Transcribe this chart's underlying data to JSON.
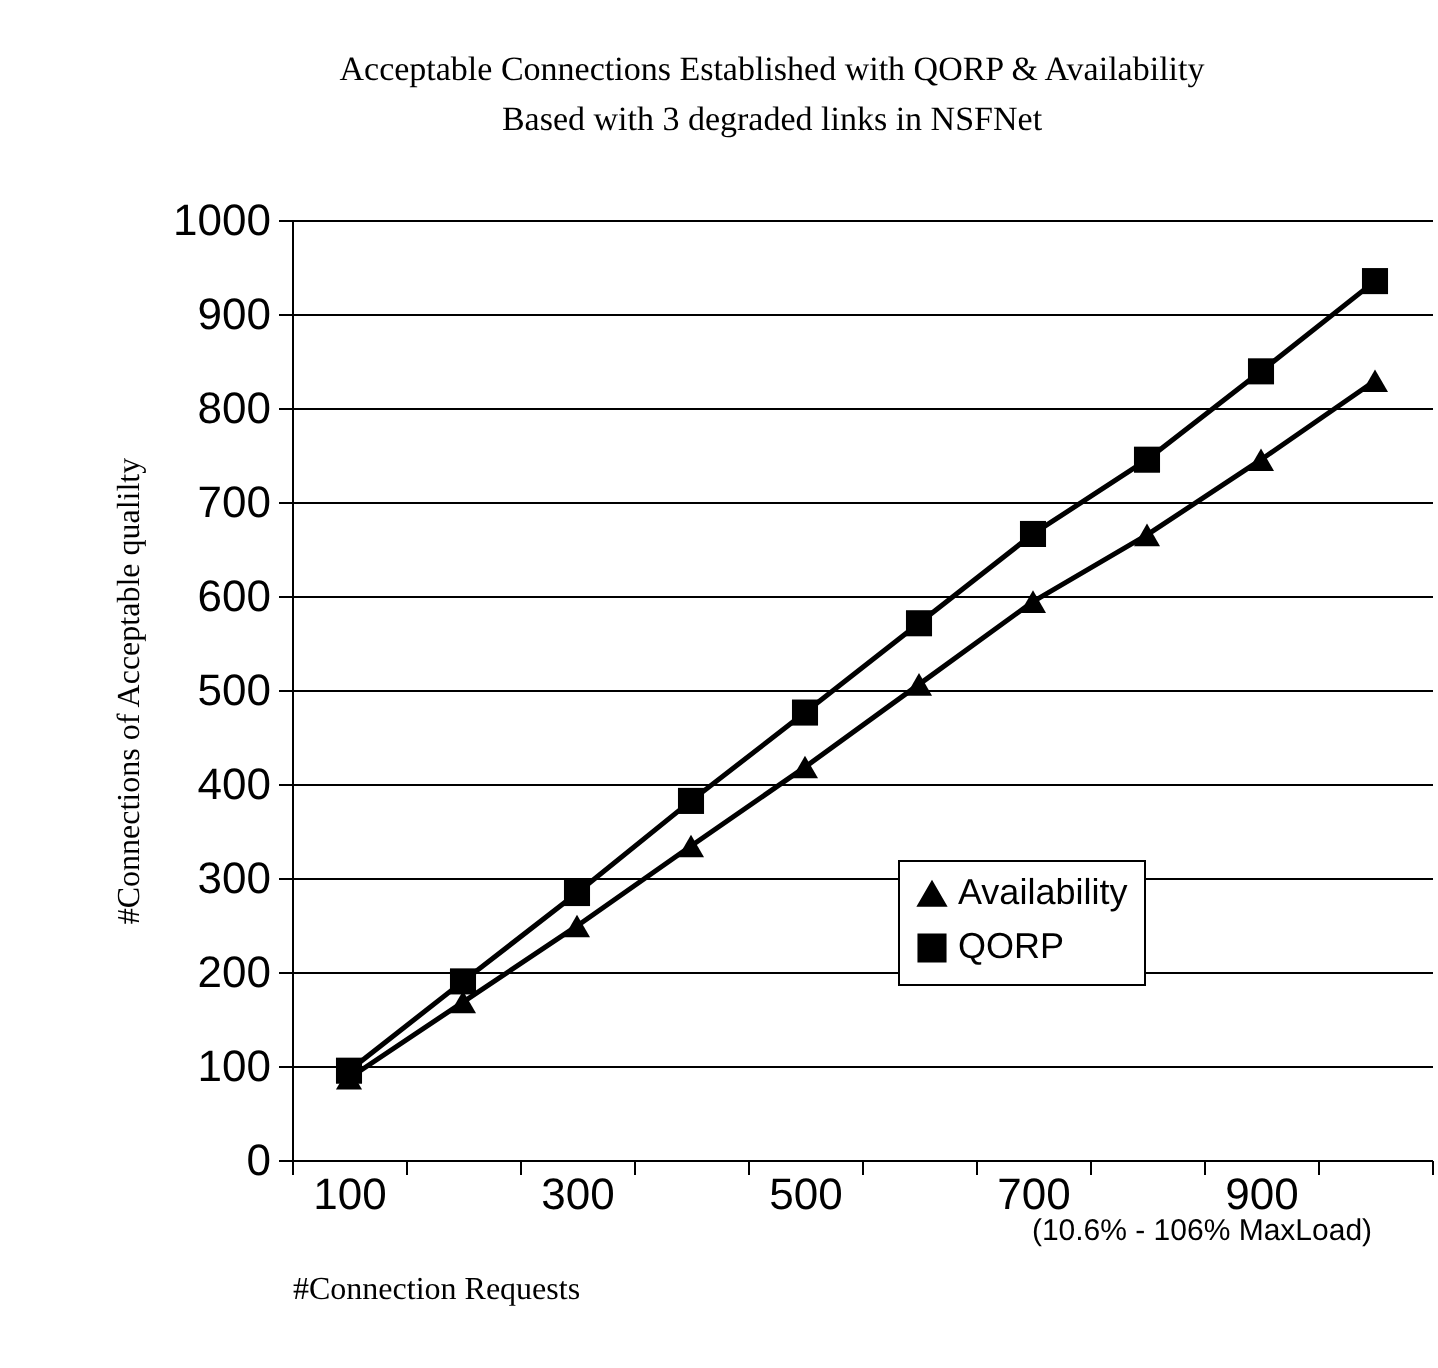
{
  "chart_data": {
    "type": "line",
    "title": "Acceptable Connections Established with QORP & Availability",
    "subtitle": "Based with 3 degraded links in NSFNet",
    "xlabel": "#Connection Requests",
    "ylabel": "#Connections of Acceptable qualilty",
    "categories": [
      "100",
      null,
      "300",
      null,
      "500",
      null,
      "700",
      null,
      "900",
      null
    ],
    "series": [
      {
        "name": "Availability",
        "color": "#000000",
        "marker": "triangle",
        "values": [
          87,
          168,
          249,
          334,
          418,
          506,
          594,
          665,
          745,
          829
        ]
      },
      {
        "name": "QORP",
        "color": "#000000",
        "marker": "square",
        "values": [
          95,
          190,
          284,
          382,
          476,
          571,
          666,
          745,
          839,
          935
        ]
      }
    ],
    "ylim": [
      0,
      1000
    ],
    "yticks": [
      0,
      100,
      200,
      300,
      400,
      500,
      600,
      700,
      800,
      900,
      1000
    ],
    "grid": "y",
    "legend": "right",
    "line_style": "solid",
    "annotations": [
      "(10.6% - 106% MaxLoad)"
    ]
  }
}
